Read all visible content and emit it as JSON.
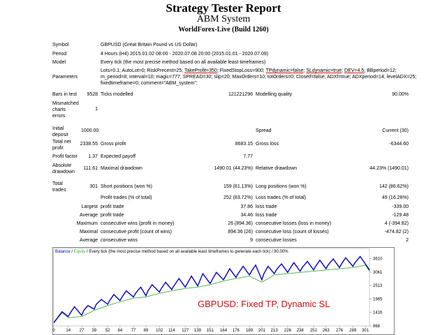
{
  "header": {
    "title": "Strategy Tester Report",
    "subtitle": "ABM System",
    "server": "WorldForex-Live (Build 1260)"
  },
  "info": {
    "symbol_label": "Symbol",
    "symbol_value": "GBPUSD (Great Britain Pound vs US Dollar)",
    "period_label": "Period",
    "period_value": "4 Hours (H4) 2015.01.02 08:00 - 2020.07.08 20:00 (2015.01.01 - 2020.07.09)",
    "model_label": "Model",
    "model_value": "Every tick (the most precise method based on all available least timeframes)",
    "params_label": "Parameters",
    "params_line1_a": "Lots=0.1; AutoLot=0; RiskPrecent=25; ",
    "params_line1_b": "TakeProfit=350",
    "params_line1_c": "; FixedStopLoss=900; ",
    "params_line1_d": "TPdynamic=false",
    "params_line1_e": "; ",
    "params_line1_f": "SLdynamic=true",
    "params_line1_g": "; ",
    "params_line1_h": "DEV=4.5",
    "params_line1_i": "; BBperiod=12;",
    "params_line2": "m_period=8; interval=10; magic=777; SPREAD=30; slip=20; MaxOrders=10; totOrders=0; CloseIf=false; ADXf=true; ADXperiod=14; levelADX=25;",
    "params_line3": "fixedtimeframe=0; comment=\"ABM_system\";"
  },
  "stats": {
    "bars_label": "Bars in test",
    "bars_value": "9528",
    "ticks_label": "Ticks modelled",
    "ticks_value": "121221296",
    "quality_label": "Modelling quality",
    "quality_value": "90.00%",
    "mismatch_label_1": "Mismatched",
    "mismatch_label_2": "charts",
    "mismatch_label_3": "errors",
    "mismatch_value": "1",
    "deposit_label_1": "Initial",
    "deposit_label_2": "deposit",
    "deposit_value": "1000.00",
    "spread_label": "Spread",
    "spread_value": "Current (30)",
    "netprofit_label_1": "Total net",
    "netprofit_label_2": "profit",
    "netprofit_value": "2338.55",
    "grossprofit_label": "Gross profit",
    "grossprofit_value": "8683.15",
    "grossloss_label": "Gross loss",
    "grossloss_value": "-6344.60",
    "pf_label": "Profit factor",
    "pf_value": "1.37",
    "ep_label": "Expected payoff",
    "ep_value": "7.77",
    "absdd_label_1": "Absolute",
    "absdd_label_2": "drawdown",
    "absdd_value": "111.61",
    "maxdd_label": "Maximal drawdown",
    "maxdd_value": "1490.01 (44.23%)",
    "reldd_label": "Relative drawdown",
    "reldd_value": "44.23% (1490.01)",
    "trades_label_1": "Total",
    "trades_label_2": "trades",
    "trades_value": "301",
    "short_label": "Short positions (won %)",
    "short_value": "159 (81.13%)",
    "long_label": "Long positions (won %)",
    "long_value": "142 (86.62%)",
    "pt_label": "Profit trades (% of total)",
    "pt_value": "252 (83.72%)",
    "lt_label": "Loss trades (% of total)",
    "lt_value": "49 (16.28%)",
    "largest_label": "Largest",
    "lp_label": "profit trade",
    "lp_value": "37.86",
    "ll_label": "loss trade",
    "ll_value": "-339.00",
    "average_label": "Average",
    "ap_label": "profit trade",
    "ap_value": "34.46",
    "al_label": "loss trade",
    "al_value": "-129.48",
    "maximum_label": "Maximum",
    "mcw_label": "consecutive wins (profit in money)",
    "mcw_value": "26 (894.36)",
    "mcl_label": "consecutive losses (loss in money)",
    "mcl_value": "4 (-394.82)",
    "maximal_label": "Maximal",
    "mcp_label": "consecutive profit (count of wins)",
    "mcp_value": "894.36 (26)",
    "mcloss_label": "consecutive loss (count of losses)",
    "mcloss_value": "-474.82 (2)",
    "average2_label": "Average",
    "acw_label": "consecutive wins",
    "acw_value": "9",
    "acl_label": "consecutive losses",
    "acl_value": "2"
  },
  "chart_data": {
    "type": "line",
    "legend_balance": "Balance",
    "legend_sep": " / ",
    "legend_equity": "Equity",
    "legend_rest": " / Every tick (the most precise method based on all available least timeframes to generate each tick) / 90.00%",
    "overlay_text": "GBPUSD: Fixed TP, Dynamic SL",
    "x_ticks": [
      "0",
      "14",
      "27",
      "39",
      "52",
      "64",
      "77",
      "89",
      "102",
      "114",
      "127",
      "139",
      "151",
      "164",
      "176",
      "189",
      "201",
      "213",
      "226",
      "238",
      "251",
      "263",
      "276",
      "289",
      "301"
    ],
    "y_ticks": [
      "3610",
      "3061",
      "2513",
      "1965",
      "1416",
      "868"
    ],
    "xlim": [
      0,
      305
    ],
    "ylim": [
      868,
      3800
    ],
    "balance_color": "#0000cc",
    "equity_color": "#40b040",
    "series": [
      {
        "name": "Balance",
        "x": [
          0,
          8,
          14,
          16,
          20,
          27,
          29,
          33,
          39,
          41,
          46,
          52,
          54,
          58,
          64,
          66,
          70,
          77,
          79,
          84,
          89,
          91,
          95,
          102,
          104,
          108,
          114,
          116,
          121,
          127,
          129,
          133,
          139,
          141,
          144,
          151,
          153,
          157,
          164,
          166,
          170,
          176,
          178,
          183,
          189,
          191,
          195,
          201,
          203,
          207,
          213,
          215,
          220,
          226,
          228,
          232,
          238,
          240,
          245,
          251,
          253,
          257,
          263,
          265,
          270,
          276,
          278,
          282,
          289,
          291,
          296,
          301,
          305
        ],
        "y": [
          1000,
          1450,
          1250,
          1400,
          1650,
          1300,
          1500,
          1700,
          1550,
          1750,
          1950,
          1750,
          1900,
          2150,
          1900,
          2050,
          2300,
          2050,
          2200,
          2450,
          2100,
          2300,
          2550,
          2250,
          2400,
          2650,
          2350,
          2500,
          2800,
          2450,
          2600,
          2900,
          2500,
          2700,
          3000,
          2600,
          2750,
          3050,
          2750,
          2900,
          3200,
          2850,
          3000,
          3300,
          2950,
          3100,
          3350,
          2750,
          3000,
          3300,
          3000,
          3150,
          3400,
          3050,
          3200,
          3450,
          3100,
          3250,
          3500,
          3150,
          3300,
          3550,
          3200,
          3350,
          3600,
          3250,
          3400,
          3650,
          3300,
          3450,
          3700,
          3400,
          3150
        ]
      },
      {
        "name": "Equity",
        "x": [
          0,
          8,
          14,
          27,
          39,
          52,
          64,
          77,
          89,
          102,
          114,
          127,
          139,
          151,
          164,
          176,
          189,
          201,
          213,
          226,
          238,
          251,
          263,
          276,
          289,
          301,
          305
        ],
        "y": [
          1000,
          1400,
          1200,
          1250,
          1500,
          1700,
          1850,
          2000,
          2050,
          2200,
          2300,
          2400,
          2450,
          2550,
          2700,
          2800,
          2900,
          2650,
          2950,
          3000,
          3050,
          3100,
          3150,
          3200,
          3250,
          3350,
          3100
        ]
      }
    ]
  }
}
